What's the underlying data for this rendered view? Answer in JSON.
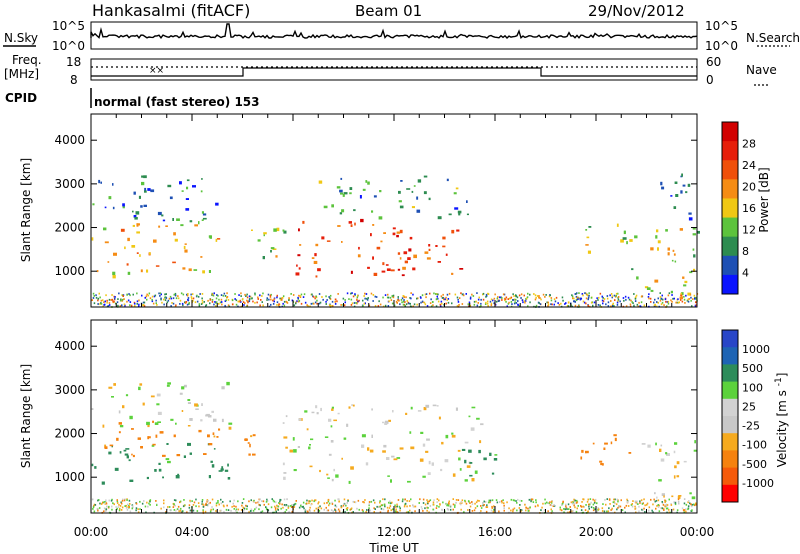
{
  "header": {
    "site": "Hankasalmi (fitACF)",
    "beam": "Beam 01",
    "date": "29/Nov/2012",
    "cpid_label": "CPID",
    "cpid_value": "normal (fast stereo) 153"
  },
  "top_panels": {
    "nsky_label": "N.Sky",
    "nsearch_label": "N.Search",
    "freq_label_1": "Freq.",
    "freq_label_2": "[MHz]",
    "nave_label": "Nave",
    "noise_ticks": [
      "10^5",
      "10^0"
    ],
    "freq_ticks": [
      "18",
      "8"
    ],
    "nave_ticks": [
      "60",
      "0"
    ]
  },
  "colors": {
    "power_scale": [
      "#0a14ff",
      "#1e50b4",
      "#2d8c50",
      "#5cc33c",
      "#f0c814",
      "#f58c14",
      "#f0500a",
      "#e61e0a",
      "#d20000"
    ],
    "velocity_scale": [
      "#ff0000",
      "#f55a0a",
      "#f5820f",
      "#f5aa1e",
      "#c8c8c8",
      "#d2d2d2",
      "#5cd23c",
      "#2d8c5a",
      "#1e64b4",
      "#2846c8"
    ]
  },
  "chart_data": [
    {
      "type": "heatmap",
      "title": "Power",
      "xlabel": "Time UT",
      "ylabel": "Slant Range [km]",
      "x_range_hours": [
        0,
        24
      ],
      "ylim": [
        180,
        4600
      ],
      "x_ticks": [
        "00:00",
        "04:00",
        "08:00",
        "12:00",
        "16:00",
        "20:00",
        "00:00"
      ],
      "y_ticks": [
        "1000",
        "2000",
        "3000",
        "4000"
      ],
      "colorbar_label": "Power [dB]",
      "colorbar_ticks": [
        "4",
        "8",
        "12",
        "16",
        "20",
        "24",
        "28"
      ],
      "regions": [
        {
          "t0": 0.0,
          "t1": 5.0,
          "r0": 900,
          "r1": 2100,
          "value": 18
        },
        {
          "t0": 0.0,
          "t1": 5.5,
          "r0": 2100,
          "r1": 3200,
          "value": 9
        },
        {
          "t0": 6.2,
          "t1": 8.3,
          "r0": 1300,
          "r1": 2100,
          "value": 14
        },
        {
          "t0": 8.0,
          "t1": 14.8,
          "r0": 900,
          "r1": 2200,
          "value": 24
        },
        {
          "t0": 9.0,
          "t1": 15.0,
          "r0": 2200,
          "r1": 3200,
          "value": 10
        },
        {
          "t0": 19.5,
          "t1": 21.5,
          "r0": 1300,
          "r1": 2100,
          "value": 14
        },
        {
          "t0": 21.3,
          "t1": 24.0,
          "r0": 300,
          "r1": 2000,
          "value": 16
        },
        {
          "t0": 22.5,
          "t1": 24.0,
          "r0": 2100,
          "r1": 3300,
          "value": 8
        }
      ]
    },
    {
      "type": "heatmap",
      "title": "Velocity",
      "xlabel": "Time UT",
      "ylabel": "Slant Range [km]",
      "x_range_hours": [
        0,
        24
      ],
      "ylim": [
        180,
        4600
      ],
      "x_ticks": [
        "00:00",
        "04:00",
        "08:00",
        "12:00",
        "16:00",
        "20:00",
        "00:00"
      ],
      "y_ticks": [
        "1000",
        "2000",
        "3000",
        "4000"
      ],
      "colorbar_label": "Velocity [m s^-1]",
      "colorbar_ticks": [
        "1000",
        "500",
        "100",
        "25",
        "-25",
        "-100",
        "-500",
        "-1000"
      ],
      "regions": [
        {
          "t0": 0.0,
          "t1": 5.5,
          "r0": 900,
          "r1": 1800,
          "value": 150
        },
        {
          "t0": 0.5,
          "t1": 6.5,
          "r0": 1500,
          "r1": 2300,
          "value": -150
        },
        {
          "t0": 0.0,
          "t1": 5.5,
          "r0": 2100,
          "r1": 3200,
          "value": 0
        },
        {
          "t0": 7.5,
          "t1": 15.5,
          "r0": 900,
          "r1": 2700,
          "value": 0
        },
        {
          "t0": 14.5,
          "t1": 16.0,
          "r0": 900,
          "r1": 1900,
          "value": 150
        },
        {
          "t0": 19.3,
          "t1": 21.5,
          "r0": 1300,
          "r1": 2100,
          "value": -300
        },
        {
          "t0": 21.5,
          "t1": 24.0,
          "r0": 300,
          "r1": 1900,
          "value": 0
        }
      ]
    }
  ]
}
